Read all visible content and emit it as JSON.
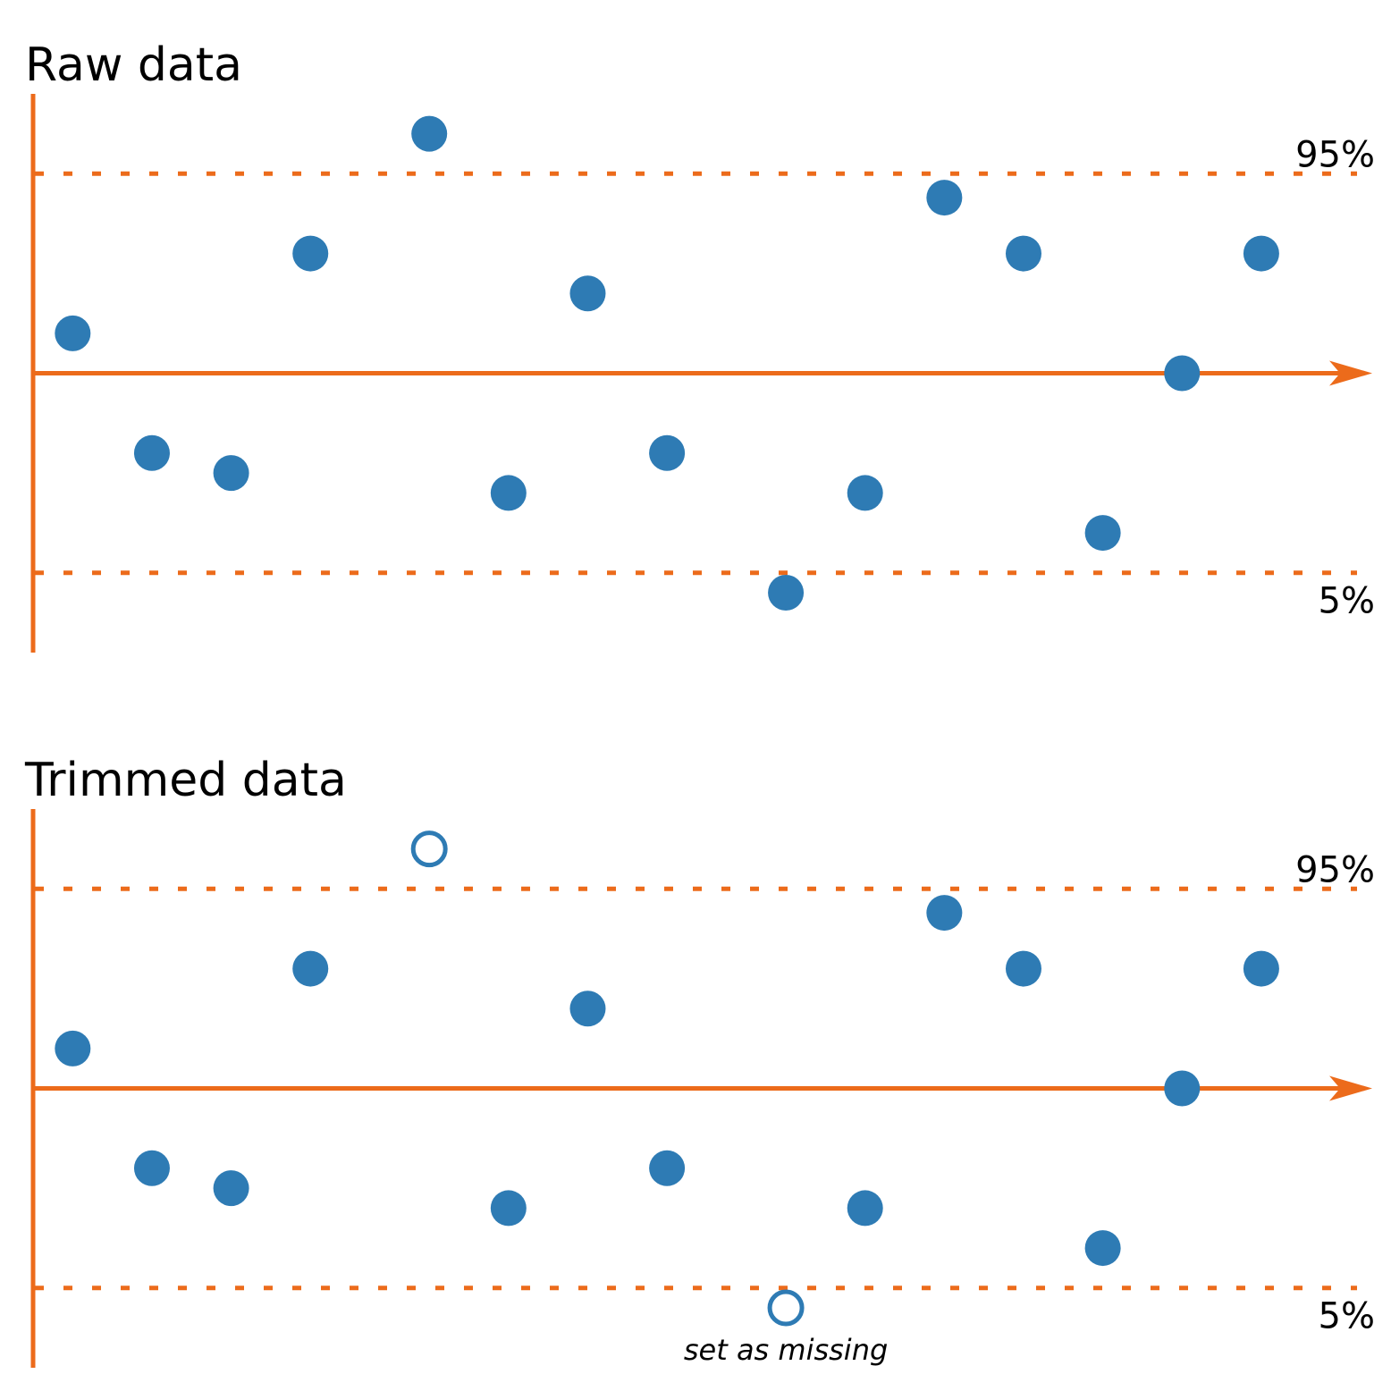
{
  "chart_data": [
    {
      "type": "scatter",
      "title": "Raw data",
      "x": [
        0,
        1,
        2,
        3,
        4.5,
        5.5,
        6.5,
        7.5,
        9,
        10,
        11,
        12,
        13,
        14,
        15
      ],
      "values": [
        1,
        -2,
        -2.5,
        3,
        6,
        -3,
        2,
        -2,
        -5.5,
        -3,
        4.4,
        3,
        -4,
        0,
        3
      ],
      "color": "#2e7bb4",
      "axis_color": "#ec6b1b",
      "xlim": [
        -0.5,
        16.4
      ],
      "ylim": [
        -7,
        7
      ],
      "thresholds": [
        {
          "value": 5,
          "label": "95%"
        },
        {
          "value": -5,
          "label": "5%"
        }
      ],
      "trim": false
    },
    {
      "type": "scatter",
      "title": "Trimmed data",
      "x": [
        0,
        1,
        2,
        3,
        4.5,
        5.5,
        6.5,
        7.5,
        9,
        10,
        11,
        12,
        13,
        14,
        15
      ],
      "values": [
        1,
        -2,
        -2.5,
        3,
        6,
        -3,
        2,
        -2,
        -5.5,
        -3,
        4.4,
        3,
        -4,
        0,
        3
      ],
      "color": "#2e7bb4",
      "axis_color": "#ec6b1b",
      "xlim": [
        -0.5,
        16.4
      ],
      "ylim": [
        -7,
        7
      ],
      "thresholds": [
        {
          "value": 5,
          "label": "95%"
        },
        {
          "value": -5,
          "label": "5%"
        }
      ],
      "trim": true,
      "annotation": "set as missing"
    }
  ]
}
